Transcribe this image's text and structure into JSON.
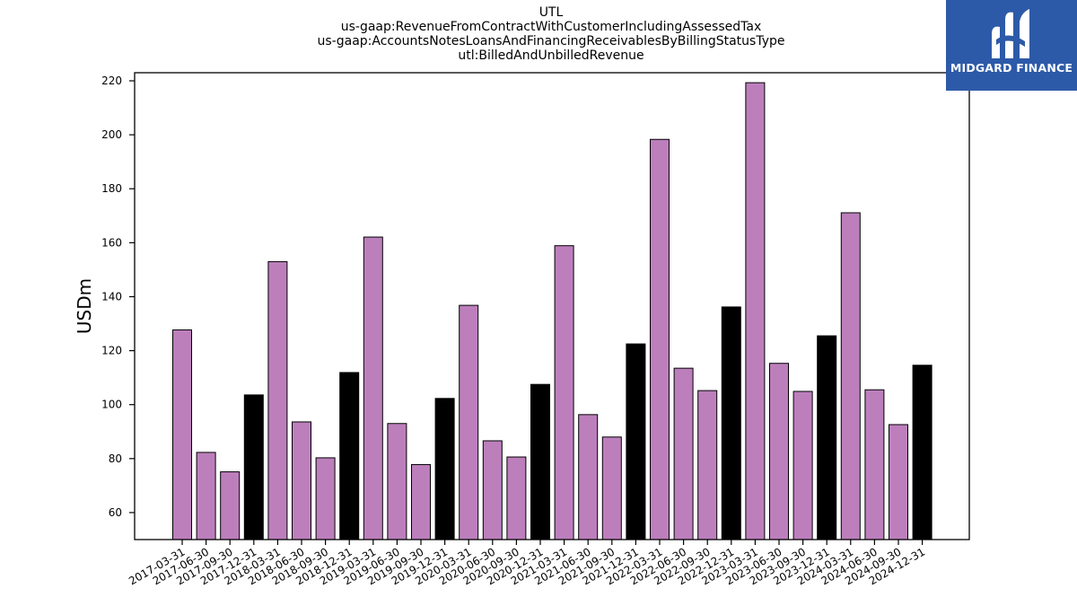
{
  "chart_data": {
    "type": "bar",
    "title_lines": [
      "UTL",
      "us-gaap:RevenueFromContractWithCustomerIncludingAssessedTax",
      "us-gaap:AccountsNotesLoansAndFinancingReceivablesByBillingStatusType",
      "utl:BilledAndUnbilledRevenue"
    ],
    "ylabel": "USDm",
    "xlabel": "",
    "ylim": [
      50,
      223
    ],
    "yticks": [
      60,
      80,
      100,
      120,
      140,
      160,
      180,
      200,
      220
    ],
    "categories": [
      "2017-03-31",
      "2017-06-30",
      "2017-09-30",
      "2017-12-31",
      "2018-03-31",
      "2018-06-30",
      "2018-09-30",
      "2018-12-31",
      "2019-03-31",
      "2019-06-30",
      "2019-09-30",
      "2019-12-31",
      "2020-03-31",
      "2020-06-30",
      "2020-09-30",
      "2020-12-31",
      "2021-03-31",
      "2021-06-30",
      "2021-09-30",
      "2021-12-31",
      "2022-03-31",
      "2022-06-30",
      "2022-09-30",
      "2022-12-31",
      "2023-03-31",
      "2023-06-30",
      "2023-09-30",
      "2023-12-31",
      "2024-03-31",
      "2024-06-30",
      "2024-09-30",
      "2024-12-31"
    ],
    "values": [
      127.7,
      82.3,
      75.1,
      103.6,
      153.0,
      93.6,
      80.3,
      111.9,
      162.1,
      93.0,
      77.8,
      102.3,
      136.8,
      86.6,
      80.6,
      107.5,
      158.9,
      96.3,
      88.0,
      122.5,
      198.3,
      113.5,
      105.2,
      136.2,
      219.3,
      115.3,
      104.9,
      125.5,
      171.1,
      105.5,
      92.6,
      114.6
    ],
    "bar_colors": {
      "quarter": "#bc7fbc",
      "year_end": "#000000"
    },
    "grid": false,
    "legend": "none"
  },
  "logo": {
    "text": "MIDGARD FINANCE",
    "background": "#2d5aa8"
  }
}
